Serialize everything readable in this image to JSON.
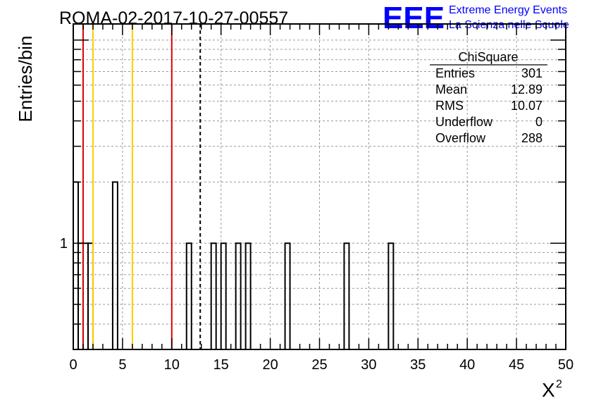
{
  "chart_data": {
    "type": "bar",
    "title": "ROMA-02-2017-10-27-00557",
    "xlabel": "X",
    "xlabel_superscript": "2",
    "ylabel": "Entries/bin",
    "xlim": [
      0,
      50
    ],
    "ylog": true,
    "ylim": [
      0.3,
      12
    ],
    "y_tick_labels": [
      {
        "value": 1,
        "label": "1"
      }
    ],
    "x_tick_labels": [
      "0",
      "5",
      "10",
      "15",
      "20",
      "25",
      "30",
      "35",
      "40",
      "45",
      "50"
    ],
    "grid": true,
    "bin_width": 0.5,
    "bins": [
      {
        "x": 0.0,
        "value": 2
      },
      {
        "x": 0.5,
        "value": 1
      },
      {
        "x": 1.0,
        "value": 1
      },
      {
        "x": 1.5,
        "value": 1
      },
      {
        "x": 4.0,
        "value": 2
      },
      {
        "x": 11.5,
        "value": 1
      },
      {
        "x": 14.0,
        "value": 1
      },
      {
        "x": 15.0,
        "value": 1
      },
      {
        "x": 16.5,
        "value": 1
      },
      {
        "x": 17.5,
        "value": 1
      },
      {
        "x": 21.5,
        "value": 1
      },
      {
        "x": 27.5,
        "value": 1
      },
      {
        "x": 32.0,
        "value": 1
      }
    ],
    "vertical_lines": [
      {
        "x": 1.0,
        "color": "#dd0000",
        "style": "solid"
      },
      {
        "x": 2.0,
        "color": "#ffcc00",
        "style": "solid"
      },
      {
        "x": 6.0,
        "color": "#ffcc00",
        "style": "solid"
      },
      {
        "x": 10.0,
        "color": "#dd0000",
        "style": "solid"
      },
      {
        "x": 12.89,
        "color": "#000000",
        "style": "dashed"
      }
    ],
    "stats_box": {
      "title": "ChiSquare",
      "rows": [
        {
          "label": "Entries",
          "value": "301"
        },
        {
          "label": "Mean",
          "value": "12.89"
        },
        {
          "label": "RMS",
          "value": "10.07"
        },
        {
          "label": "Underflow",
          "value": "0"
        },
        {
          "label": "Overflow",
          "value": "288"
        }
      ]
    }
  },
  "logo": {
    "mark": "EEE",
    "line1": "Extreme Energy Events",
    "line2": "La Scienza nelle Scuole",
    "color": "#0000ff"
  }
}
